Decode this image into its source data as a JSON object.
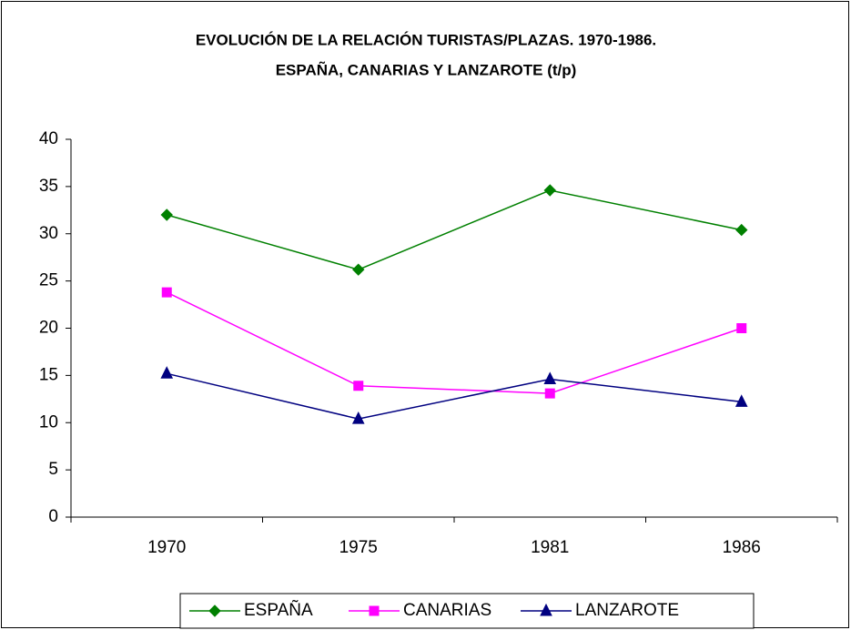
{
  "chart_data": {
    "type": "line",
    "title": [
      "EVOLUCIÓN DE LA RELACIÓN TURISTAS/PLAZAS. 1970-1986.",
      "ESPAÑA, CANARIAS Y LANZAROTE (t/p)"
    ],
    "categories": [
      "1970",
      "1975",
      "1981",
      "1986"
    ],
    "series": [
      {
        "name": "ESPAÑA",
        "color": "#008000",
        "marker": "diamond",
        "values": [
          32,
          26.2,
          34.6,
          30.4
        ]
      },
      {
        "name": "CANARIAS",
        "color": "#ff00ff",
        "marker": "square",
        "values": [
          23.8,
          13.9,
          13.1,
          20
        ]
      },
      {
        "name": "LANZAROTE",
        "color": "#000080",
        "marker": "triangle",
        "values": [
          15.2,
          10.4,
          14.6,
          12.2
        ]
      }
    ],
    "ylim": [
      0,
      40
    ],
    "yticks": [
      0,
      5,
      10,
      15,
      20,
      25,
      30,
      35,
      40
    ],
    "grid": false,
    "legend": "bottom"
  }
}
